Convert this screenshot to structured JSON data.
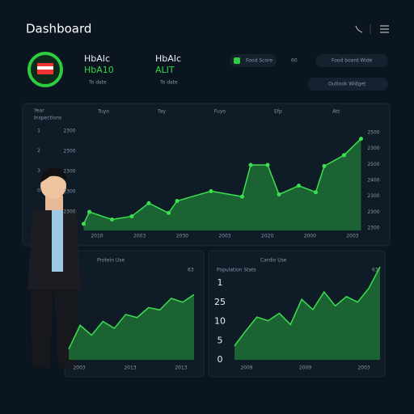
{
  "header": {
    "title": "Dashboard"
  },
  "kpis": [
    {
      "label": "HbAIc",
      "value": "HbA10",
      "note": "To date"
    },
    {
      "label": "HbAIc",
      "value": "ALIT",
      "note": "To date"
    }
  ],
  "buttons": [
    "Food Score",
    "60",
    "Food board Wide",
    "Outlook Widget"
  ],
  "main_chart": {
    "legend": "Year",
    "subtitle": "Inspections",
    "top_labels": [
      "Tuyo",
      "Tay",
      "Fuyo",
      "Efp",
      "Atc"
    ],
    "left_labels": [
      "1",
      "2",
      "3",
      "0"
    ],
    "mid_labels": [
      "2300",
      "2300",
      "2300",
      "2300",
      "2300"
    ],
    "right_labels": [
      "2500",
      "2300",
      "2500",
      "2400",
      "2300",
      "2300",
      "2300"
    ],
    "x_labels": [
      "2010",
      "2003",
      "2030",
      "2003",
      "2020",
      "2000",
      "2003"
    ],
    "x": [
      1,
      3,
      11,
      18,
      24,
      31,
      34,
      46,
      57,
      60,
      66,
      70,
      77,
      83,
      86,
      93,
      99
    ],
    "values": [
      6,
      17,
      10,
      13,
      25,
      16,
      27,
      36,
      31,
      60,
      60,
      33,
      41,
      35,
      59,
      69,
      84
    ],
    "xlim": [
      0,
      100
    ],
    "ylim": [
      0,
      100
    ]
  },
  "panels": [
    {
      "title": "Protein Use",
      "badge": "63",
      "y_labels": [],
      "x_labels": [
        "2003",
        "2013",
        "2013"
      ],
      "values": [
        14,
        45,
        32,
        50,
        41,
        59,
        55,
        68,
        65,
        80,
        75,
        85
      ],
      "ylim": [
        0,
        100
      ]
    },
    {
      "title": "Cardio Use",
      "subtitle": "Population Stats",
      "badge": "63",
      "y_labels": [
        "1",
        "25",
        "10",
        "5",
        "0"
      ],
      "x_labels": [
        "2009",
        "2009",
        "2003"
      ],
      "values": [
        15,
        31,
        46,
        42,
        50,
        38,
        65,
        54,
        73,
        58,
        68,
        62,
        77,
        100
      ],
      "ylim": [
        0,
        100
      ]
    }
  ]
}
